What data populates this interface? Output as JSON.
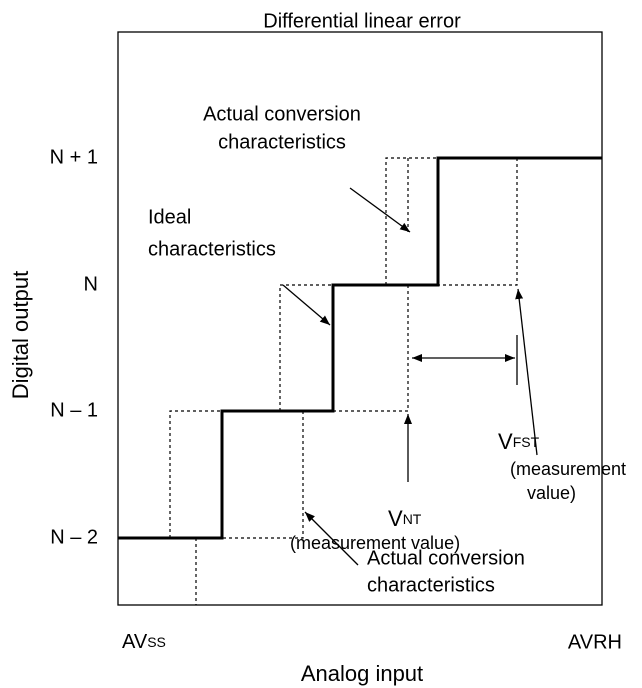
{
  "title": "Differential linear error",
  "y_axis": {
    "label": "Digital output",
    "levels": [
      "N + 1",
      "N",
      "N – 1",
      "N – 2"
    ]
  },
  "x_axis": {
    "label": "Analog input",
    "left": {
      "main": "AV",
      "sub": "SS"
    },
    "right": "AVRH"
  },
  "annotations": {
    "actual_top": [
      "Actual conversion",
      "characteristics"
    ],
    "ideal": [
      "Ideal",
      "characteristics"
    ],
    "vfst": {
      "symbol": "V",
      "sub": "FST",
      "note": [
        "(measurement",
        "value)"
      ]
    },
    "vnt": {
      "symbol": "V",
      "sub": "NT",
      "note": "(measurement value)"
    },
    "actual_bottom": [
      "Actual conversion",
      "characteristics"
    ]
  }
}
